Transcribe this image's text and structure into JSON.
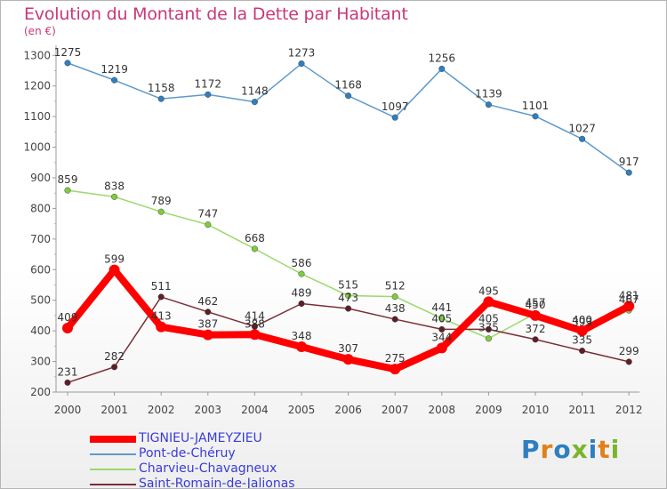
{
  "header": {
    "title": "Evolution du Montant de la Dette par Habitant",
    "unit": "(en €)"
  },
  "brand": {
    "text": "Proxiti",
    "letter_colors": [
      "#2e7fc1",
      "#e0811d",
      "#2e7fc1",
      "#7ab52a",
      "#2e7fc1",
      "#e0811d",
      "#7ab52a"
    ]
  },
  "chart_data": {
    "type": "line",
    "title": "Evolution du Montant de la Dette par Habitant",
    "ylabel": "(en €)",
    "xlabel": "",
    "x": [
      "2000",
      "2001",
      "2002",
      "2003",
      "2004",
      "2005",
      "2006",
      "2007",
      "2008",
      "2009",
      "2010",
      "2011",
      "2012"
    ],
    "ylim": [
      200,
      1300
    ],
    "yticks": [
      200,
      300,
      400,
      500,
      600,
      700,
      800,
      900,
      1000,
      1100,
      1200,
      1300
    ],
    "grid": false,
    "legend_position": "bottom-left",
    "series": [
      {
        "name": "Pont-de-Chéruy",
        "color": "#5e9acb",
        "marker_color": "#2f7fc0",
        "values": [
          1275,
          1219,
          1158,
          1172,
          1148,
          1273,
          1168,
          1097,
          1256,
          1139,
          1101,
          1027,
          917
        ]
      },
      {
        "name": "Charvieu-Chavagneux",
        "color": "#9bd86a",
        "marker_color": "#7fcc3e",
        "values": [
          859,
          838,
          789,
          747,
          668,
          586,
          515,
          512,
          441,
          375,
          457,
          393,
          467
        ]
      },
      {
        "name": "Saint-Romain-de-Jalionas",
        "color": "#7a2e36",
        "marker_color": "#5e1e24",
        "values": [
          231,
          282,
          511,
          462,
          414,
          489,
          473,
          438,
          405,
          405,
          372,
          335,
          299
        ]
      },
      {
        "name": "TIGNIEU-JAMEYZIEU",
        "color": "#ff0000",
        "marker_color": "#ff0000",
        "values": [
          409,
          599,
          413,
          387,
          388,
          348,
          307,
          275,
          344,
          495,
          450,
          400,
          481
        ]
      }
    ]
  }
}
